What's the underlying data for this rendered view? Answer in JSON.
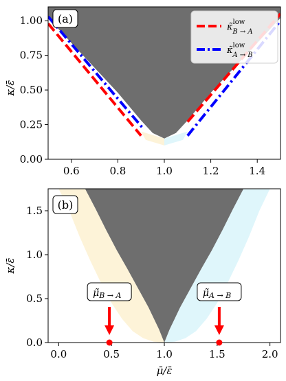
{
  "chart_data": [
    {
      "type": "area",
      "panel_label": "(a)",
      "xlabel": "",
      "ylabel": "κ/ε̄",
      "xlim": [
        0.5,
        1.5
      ],
      "ylim": [
        0.0,
        1.1
      ],
      "xticks": [
        "0.6",
        "0.8",
        "1.0",
        "1.2",
        "1.4"
      ],
      "xtick_values": [
        0.6,
        0.8,
        1.0,
        1.2,
        1.4
      ],
      "yticks": [
        "0.00",
        "0.25",
        "0.50",
        "0.75",
        "1.00"
      ],
      "ytick_values": [
        0.0,
        0.25,
        0.5,
        0.75,
        1.0
      ],
      "grid": false,
      "legend_position": "top-right",
      "colors": {
        "region_dark": "#6e6e6e",
        "region_left": "#fdf3d8",
        "region_right": "#dff6fb",
        "line_b_to_a": "#ff0000",
        "line_a_to_b": "#0000ff"
      },
      "regions": {
        "dark_boundary": {
          "x": [
            0.5,
            0.6,
            0.7,
            0.8,
            0.85,
            0.9,
            0.95,
            1.0,
            1.05,
            1.1,
            1.15,
            1.2,
            1.3,
            1.4,
            1.5
          ],
          "y": [
            1.02,
            0.84,
            0.66,
            0.48,
            0.38,
            0.28,
            0.19,
            0.15,
            0.19,
            0.28,
            0.38,
            0.48,
            0.66,
            0.84,
            1.02
          ]
        }
      },
      "series": [
        {
          "name": "κ̃ low B→A",
          "style": "dashed",
          "segments": [
            {
              "x": [
                0.5,
                0.9
              ],
              "y": [
                0.98,
                0.17
              ]
            },
            {
              "x": [
                1.1,
                1.5
              ],
              "y": [
                0.27,
                1.05
              ]
            }
          ]
        },
        {
          "name": "κ̃ low A→B",
          "style": "dashdot",
          "segments": [
            {
              "x": [
                0.5,
                0.91
              ],
              "y": [
                1.03,
                0.22
              ]
            },
            {
              "x": [
                1.1,
                1.5
              ],
              "y": [
                0.17,
                1.0
              ]
            }
          ]
        }
      ],
      "legend": [
        {
          "symbol": "κ̃",
          "sup": "low",
          "sub": "B → A"
        },
        {
          "symbol": "κ̃",
          "sup": "low",
          "sub": "A → B"
        }
      ]
    },
    {
      "type": "area",
      "panel_label": "(b)",
      "xlabel": "μ̄/ε̄",
      "ylabel": "κ/ε̄",
      "xlim": [
        -0.1,
        2.1
      ],
      "ylim": [
        0.0,
        1.75
      ],
      "xticks": [
        "0.0",
        "0.5",
        "1.0",
        "1.5",
        "2.0"
      ],
      "xtick_values": [
        0.0,
        0.5,
        1.0,
        1.5,
        2.0
      ],
      "yticks": [
        "0.0",
        "0.5",
        "1.0",
        "1.5"
      ],
      "ytick_values": [
        0.0,
        0.5,
        1.0,
        1.5
      ],
      "grid": false,
      "regions": {
        "outer_boundary": {
          "x": [
            0.0,
            0.1,
            0.2,
            0.3,
            0.4,
            0.5,
            0.6,
            0.7,
            0.8,
            0.9,
            1.0,
            1.1,
            1.2,
            1.3,
            1.4,
            1.5,
            1.6,
            1.7,
            1.8,
            1.9,
            2.0
          ],
          "y": [
            1.75,
            1.5,
            1.2,
            0.93,
            0.68,
            0.45,
            0.27,
            0.13,
            0.05,
            0.01,
            0.0,
            0.01,
            0.05,
            0.13,
            0.27,
            0.45,
            0.68,
            0.93,
            1.2,
            1.5,
            1.75
          ]
        },
        "dark_boundary": {
          "x": [
            0.25,
            0.35,
            0.45,
            0.55,
            0.65,
            0.75,
            0.85,
            0.95,
            1.0,
            1.05,
            1.15,
            1.25,
            1.35,
            1.45,
            1.55,
            1.65,
            1.75
          ],
          "y": [
            1.75,
            1.52,
            1.28,
            1.05,
            0.84,
            0.62,
            0.4,
            0.15,
            0.0,
            0.15,
            0.4,
            0.62,
            0.84,
            1.05,
            1.28,
            1.52,
            1.75
          ]
        }
      },
      "points": [
        {
          "label": "μ̃",
          "sub": "B → A",
          "x": 0.48,
          "y": 0.0
        },
        {
          "label": "μ̃",
          "sub": "A → B",
          "x": 1.52,
          "y": 0.0
        }
      ]
    }
  ]
}
